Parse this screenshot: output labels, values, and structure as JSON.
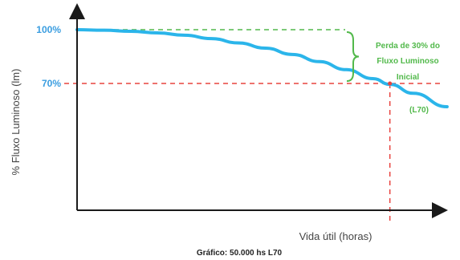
{
  "chart_data": {
    "type": "line",
    "xlabel": "Vida útil (horas)",
    "ylabel": "% Fluxo Luminoso (lm)",
    "yticks": [
      "100%",
      "70%"
    ],
    "ylim": [
      0,
      110
    ],
    "xlim": [
      0,
      100
    ],
    "series": [
      {
        "points": [
          [
            0,
            100
          ],
          [
            8,
            99.7
          ],
          [
            16,
            99.1
          ],
          [
            24,
            98.2
          ],
          [
            32,
            96.9
          ],
          [
            40,
            95.0
          ],
          [
            48,
            92.6
          ],
          [
            56,
            89.7
          ],
          [
            64,
            86.2
          ],
          [
            72,
            82.2
          ],
          [
            80,
            77.7
          ],
          [
            88,
            72.7
          ],
          [
            93,
            69.5
          ],
          [
            100,
            64.5
          ],
          [
            110,
            57.0
          ]
        ]
      }
    ],
    "annotation": {
      "text_lines": [
        "Perda de 30% do",
        "Fluxo Luminoso",
        "Inicial"
      ],
      "l70_label": "(L70)",
      "l70_x": 93
    },
    "caption": "Gráfico: 50.000 hs L70",
    "colors": {
      "curve": "#2bb5ea",
      "reference": "#e8433f",
      "loss": "#52b94b",
      "tick_labels": "#3a9de0",
      "axes": "#1a1a1a"
    }
  }
}
